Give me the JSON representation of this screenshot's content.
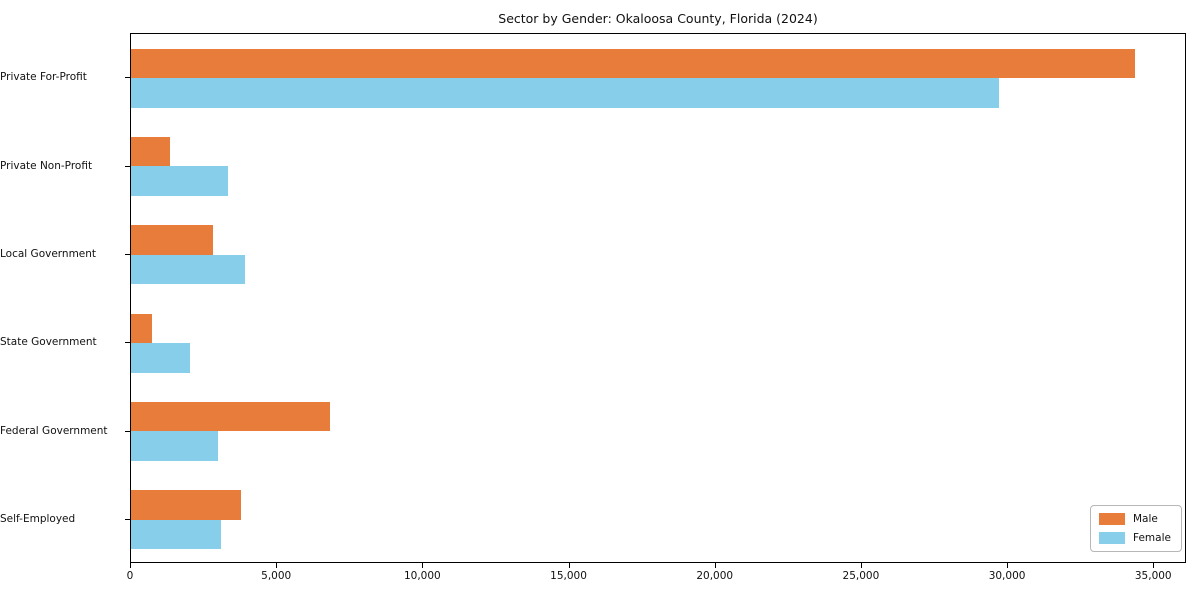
{
  "title": "Sector by Gender: Okaloosa County, Florida (2024)",
  "colors": {
    "male": "#E87D3B",
    "female": "#87CEEB",
    "axis": "#000000",
    "background": "#ffffff"
  },
  "legend": {
    "position": "lower right",
    "items": [
      {
        "label": "Male",
        "color": "#E87D3B"
      },
      {
        "label": "Female",
        "color": "#87CEEB"
      }
    ]
  },
  "chart_data": {
    "type": "bar",
    "orientation": "horizontal",
    "title": "Sector by Gender: Okaloosa County, Florida (2024)",
    "xlabel": "",
    "ylabel": "",
    "grid": false,
    "categories": [
      "Private For-Profit",
      "Private Non-Profit",
      "Local Government",
      "State Government",
      "Federal Government",
      "Self-Employed"
    ],
    "series": [
      {
        "name": "Male",
        "color": "#E87D3B",
        "values": [
          34400,
          1320,
          2800,
          710,
          6810,
          3760
        ]
      },
      {
        "name": "Female",
        "color": "#87CEEB",
        "values": [
          29750,
          3340,
          3900,
          2030,
          2990,
          3080
        ]
      }
    ],
    "xlim": [
      0,
      36120
    ],
    "xticks": [
      0,
      5000,
      10000,
      15000,
      20000,
      25000,
      30000,
      35000
    ],
    "xtick_format": "thousands-comma",
    "legend_position": "lower right"
  }
}
